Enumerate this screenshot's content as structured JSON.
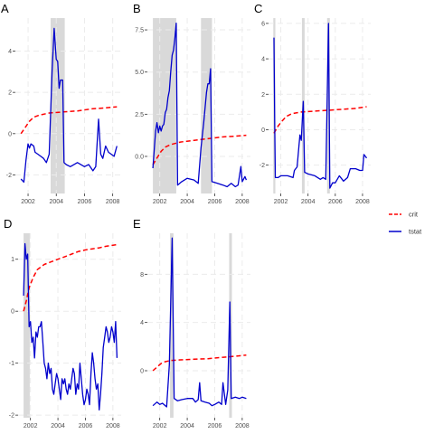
{
  "colors": {
    "crit": "#ff0000",
    "tstat": "#0000cc",
    "band": "#d9d9d9",
    "grid": "#ebebeb",
    "background": "#ffffff"
  },
  "legend": {
    "items": [
      {
        "key": "crit",
        "label": "crit",
        "style": "dashed"
      },
      {
        "key": "tstat",
        "label": "tstat",
        "style": "solid"
      }
    ]
  },
  "chart_data": [
    {
      "panel": "A",
      "type": "line",
      "xlim": [
        2001.1,
        2008.6
      ],
      "ylim": [
        -2.9,
        5.6
      ],
      "xticks": [
        2002,
        2004,
        2006,
        2008
      ],
      "yticks": [
        -2,
        0,
        2,
        4
      ],
      "bands": [
        [
          2003.6,
          2004.6
        ]
      ],
      "series": [
        {
          "name": "crit",
          "x": [
            2001.5,
            2001.8,
            2002.1,
            2002.4,
            2002.8,
            2003.5,
            2004.5,
            2005.5,
            2006.5,
            2007.5,
            2008.3
          ],
          "y": [
            0.0,
            0.3,
            0.6,
            0.8,
            0.9,
            1.0,
            1.05,
            1.1,
            1.2,
            1.25,
            1.3
          ]
        },
        {
          "name": "tstat",
          "x": [
            2001.5,
            2001.7,
            2001.85,
            2002.0,
            2002.1,
            2002.2,
            2002.4,
            2002.5,
            2002.7,
            2002.9,
            2003.1,
            2003.3,
            2003.5,
            2003.7,
            2003.85,
            2004.0,
            2004.1,
            2004.2,
            2004.3,
            2004.45,
            2004.55,
            2004.7,
            2005.0,
            2005.5,
            2006.0,
            2006.3,
            2006.6,
            2006.8,
            2007.0,
            2007.15,
            2007.3,
            2007.5,
            2007.7,
            2007.9,
            2008.1,
            2008.3
          ],
          "y": [
            -2.2,
            -2.35,
            -1.3,
            -0.5,
            -0.7,
            -0.5,
            -0.6,
            -0.9,
            -1.0,
            -1.1,
            -1.2,
            -1.4,
            -1.0,
            3.0,
            5.1,
            3.6,
            3.5,
            2.2,
            2.6,
            2.6,
            -1.4,
            -1.5,
            -1.6,
            -1.4,
            -1.6,
            -1.5,
            -1.8,
            -1.6,
            0.7,
            -1.0,
            -1.2,
            -0.6,
            -0.9,
            -1.0,
            -1.1,
            -0.6
          ]
        }
      ]
    },
    {
      "panel": "B",
      "type": "line",
      "xlim": [
        2001.1,
        2008.6
      ],
      "ylim": [
        -2.2,
        8.2
      ],
      "xticks": [
        2002,
        2004,
        2006,
        2008
      ],
      "yticks": [
        0.0,
        2.5,
        5.0,
        7.5
      ],
      "bands": [
        [
          2001.5,
          2003.2
        ],
        [
          2005.0,
          2005.8
        ]
      ],
      "series": [
        {
          "name": "crit",
          "x": [
            2001.5,
            2001.8,
            2002.1,
            2002.4,
            2002.8,
            2003.5,
            2004.5,
            2005.5,
            2006.5,
            2007.5,
            2008.3
          ],
          "y": [
            -0.5,
            -0.1,
            0.3,
            0.55,
            0.7,
            0.85,
            0.95,
            1.05,
            1.15,
            1.2,
            1.25
          ]
        },
        {
          "name": "tstat",
          "x": [
            2001.5,
            2001.7,
            2001.8,
            2001.9,
            2002.0,
            2002.1,
            2002.2,
            2002.3,
            2002.4,
            2002.5,
            2002.6,
            2002.7,
            2002.8,
            2002.9,
            2003.0,
            2003.1,
            2003.2,
            2003.3,
            2003.6,
            2004.0,
            2004.5,
            2004.8,
            2005.0,
            2005.2,
            2005.4,
            2005.5,
            2005.6,
            2005.7,
            2005.8,
            2006.2,
            2006.6,
            2006.9,
            2007.2,
            2007.5,
            2007.7,
            2007.9,
            2008.0,
            2008.2,
            2008.3
          ],
          "y": [
            -0.7,
            1.5,
            2.0,
            1.4,
            1.8,
            1.5,
            1.8,
            1.9,
            2.6,
            2.8,
            3.5,
            3.9,
            5.0,
            6.0,
            6.3,
            7.0,
            7.9,
            -1.7,
            -1.5,
            -1.3,
            -1.4,
            -1.6,
            0.5,
            2.0,
            3.8,
            4.3,
            4.3,
            5.2,
            -1.5,
            -1.6,
            -1.7,
            -1.8,
            -1.6,
            -1.8,
            -1.7,
            -0.6,
            -1.5,
            -1.2,
            -1.4
          ]
        }
      ]
    },
    {
      "panel": "C",
      "type": "line",
      "xlim": [
        2001.1,
        2008.6
      ],
      "ylim": [
        -3.6,
        6.3
      ],
      "xticks": [
        2002,
        2004,
        2006,
        2008
      ],
      "yticks": [
        -2,
        0,
        2,
        4,
        6
      ],
      "bands": [
        [
          2001.45,
          2001.6
        ],
        [
          2003.55,
          2003.75
        ],
        [
          2005.4,
          2005.6
        ]
      ],
      "series": [
        {
          "name": "crit",
          "x": [
            2001.5,
            2001.8,
            2002.1,
            2002.4,
            2002.8,
            2003.5,
            2004.5,
            2005.5,
            2006.5,
            2007.5,
            2008.3
          ],
          "y": [
            -0.2,
            0.2,
            0.5,
            0.75,
            0.9,
            1.0,
            1.05,
            1.1,
            1.15,
            1.2,
            1.3
          ]
        },
        {
          "name": "tstat",
          "x": [
            2001.5,
            2001.55,
            2001.6,
            2001.8,
            2002.0,
            2002.5,
            2002.9,
            2003.0,
            2003.2,
            2003.4,
            2003.5,
            2003.65,
            2003.75,
            2004.0,
            2004.5,
            2004.9,
            2005.1,
            2005.3,
            2005.5,
            2005.6,
            2005.8,
            2006.0,
            2006.3,
            2006.6,
            2006.9,
            2007.1,
            2007.5,
            2007.8,
            2008.0,
            2008.1,
            2008.3
          ],
          "y": [
            5.2,
            0.5,
            -2.7,
            -2.7,
            -2.6,
            -2.6,
            -2.7,
            -2.3,
            -2.1,
            -0.3,
            -0.6,
            1.6,
            -2.4,
            -2.5,
            -2.6,
            -2.8,
            -2.7,
            -2.8,
            6.0,
            -3.3,
            -3.0,
            -3.0,
            -2.6,
            -2.9,
            -2.7,
            -2.2,
            -2.2,
            -2.3,
            -2.3,
            -1.4,
            -1.6
          ]
        }
      ]
    },
    {
      "panel": "D",
      "type": "line",
      "xlim": [
        2001.1,
        2008.6
      ],
      "ylim": [
        -2.05,
        1.5
      ],
      "xticks": [
        2002,
        2004,
        2006,
        2008
      ],
      "yticks": [
        -2,
        -1,
        0,
        1
      ],
      "bands": [
        [
          2001.5,
          2001.95
        ]
      ],
      "series": [
        {
          "name": "crit",
          "x": [
            2001.5,
            2001.7,
            2001.9,
            2002.2,
            2002.5,
            2003.0,
            2003.5,
            2004.0,
            2004.5,
            2005.0,
            2005.5,
            2006.0,
            2006.5,
            2007.0,
            2007.5,
            2008.0,
            2008.3
          ],
          "y": [
            0.0,
            0.2,
            0.45,
            0.65,
            0.8,
            0.9,
            0.95,
            1.0,
            1.05,
            1.1,
            1.15,
            1.18,
            1.2,
            1.22,
            1.25,
            1.27,
            1.28
          ]
        },
        {
          "name": "tstat",
          "x": [
            2001.5,
            2001.6,
            2001.7,
            2001.8,
            2001.9,
            2002.0,
            2002.1,
            2002.2,
            2002.3,
            2002.4,
            2002.5,
            2002.6,
            2002.7,
            2002.8,
            2002.9,
            2003.0,
            2003.1,
            2003.2,
            2003.3,
            2003.4,
            2003.5,
            2003.6,
            2003.7,
            2003.8,
            2003.9,
            2004.0,
            2004.1,
            2004.2,
            2004.3,
            2004.4,
            2004.5,
            2004.6,
            2004.7,
            2004.8,
            2004.9,
            2005.0,
            2005.1,
            2005.2,
            2005.3,
            2005.4,
            2005.5,
            2005.6,
            2005.7,
            2005.8,
            2005.9,
            2006.0,
            2006.1,
            2006.2,
            2006.3,
            2006.4,
            2006.5,
            2006.6,
            2006.7,
            2006.8,
            2006.9,
            2007.0,
            2007.1,
            2007.2,
            2007.3,
            2007.4,
            2007.5,
            2007.6,
            2007.7,
            2007.8,
            2007.9,
            2008.0,
            2008.1,
            2008.2,
            2008.3
          ],
          "y": [
            0.3,
            1.3,
            1.0,
            1.1,
            -0.3,
            -0.2,
            -0.6,
            -0.5,
            -0.9,
            -0.4,
            -0.5,
            -0.3,
            -0.3,
            -0.2,
            -0.6,
            -1.0,
            -1.1,
            -1.3,
            -1.0,
            -1.2,
            -1.1,
            -1.5,
            -1.6,
            -1.4,
            -1.2,
            -1.3,
            -1.5,
            -1.7,
            -1.3,
            -1.4,
            -1.3,
            -1.5,
            -1.6,
            -1.4,
            -1.5,
            -1.3,
            -1.1,
            -1.2,
            -1.6,
            -1.4,
            -1.5,
            -1.0,
            -1.3,
            -1.6,
            -1.8,
            -1.7,
            -1.5,
            -1.6,
            -1.8,
            -1.2,
            -0.8,
            -1.0,
            -1.3,
            -1.5,
            -1.4,
            -1.9,
            -1.6,
            -1.2,
            -0.7,
            -0.5,
            -0.3,
            -0.4,
            -0.6,
            -0.5,
            -0.3,
            -0.4,
            -0.6,
            -0.2,
            -0.9
          ]
        }
      ]
    },
    {
      "panel": "E",
      "type": "line",
      "xlim": [
        2001.1,
        2008.6
      ],
      "ylim": [
        -3.9,
        11.4
      ],
      "xticks": [
        2002,
        2004,
        2006,
        2008
      ],
      "yticks": [
        0,
        4,
        8
      ],
      "bands": [
        [
          2002.75,
          2003.0
        ],
        [
          2007.05,
          2007.25
        ]
      ],
      "series": [
        {
          "name": "crit",
          "x": [
            2001.5,
            2001.8,
            2002.1,
            2002.4,
            2002.8,
            2003.5,
            2004.5,
            2005.5,
            2006.5,
            2007.5,
            2008.3
          ],
          "y": [
            0.0,
            0.3,
            0.6,
            0.75,
            0.85,
            0.9,
            0.95,
            1.0,
            1.1,
            1.2,
            1.3
          ]
        },
        {
          "name": "tstat",
          "x": [
            2001.5,
            2001.8,
            2002.0,
            2002.2,
            2002.5,
            2002.7,
            2002.9,
            2003.05,
            2003.3,
            2003.6,
            2004.0,
            2004.4,
            2004.6,
            2004.8,
            2004.9,
            2005.0,
            2005.3,
            2005.6,
            2005.8,
            2006.0,
            2006.3,
            2006.5,
            2006.6,
            2006.8,
            2006.95,
            2007.1,
            2007.2,
            2007.5,
            2007.8,
            2008.0,
            2008.3
          ],
          "y": [
            -2.9,
            -2.6,
            -2.8,
            -2.7,
            -3.0,
            0.5,
            11.0,
            -2.3,
            -2.5,
            -2.4,
            -2.3,
            -2.3,
            -2.6,
            -2.4,
            -1.0,
            -2.5,
            -2.6,
            -2.7,
            -2.9,
            -2.8,
            -2.6,
            -2.8,
            -1.0,
            -2.8,
            -1.6,
            5.7,
            -2.3,
            -2.2,
            -2.3,
            -2.2,
            -2.3
          ]
        }
      ]
    }
  ]
}
